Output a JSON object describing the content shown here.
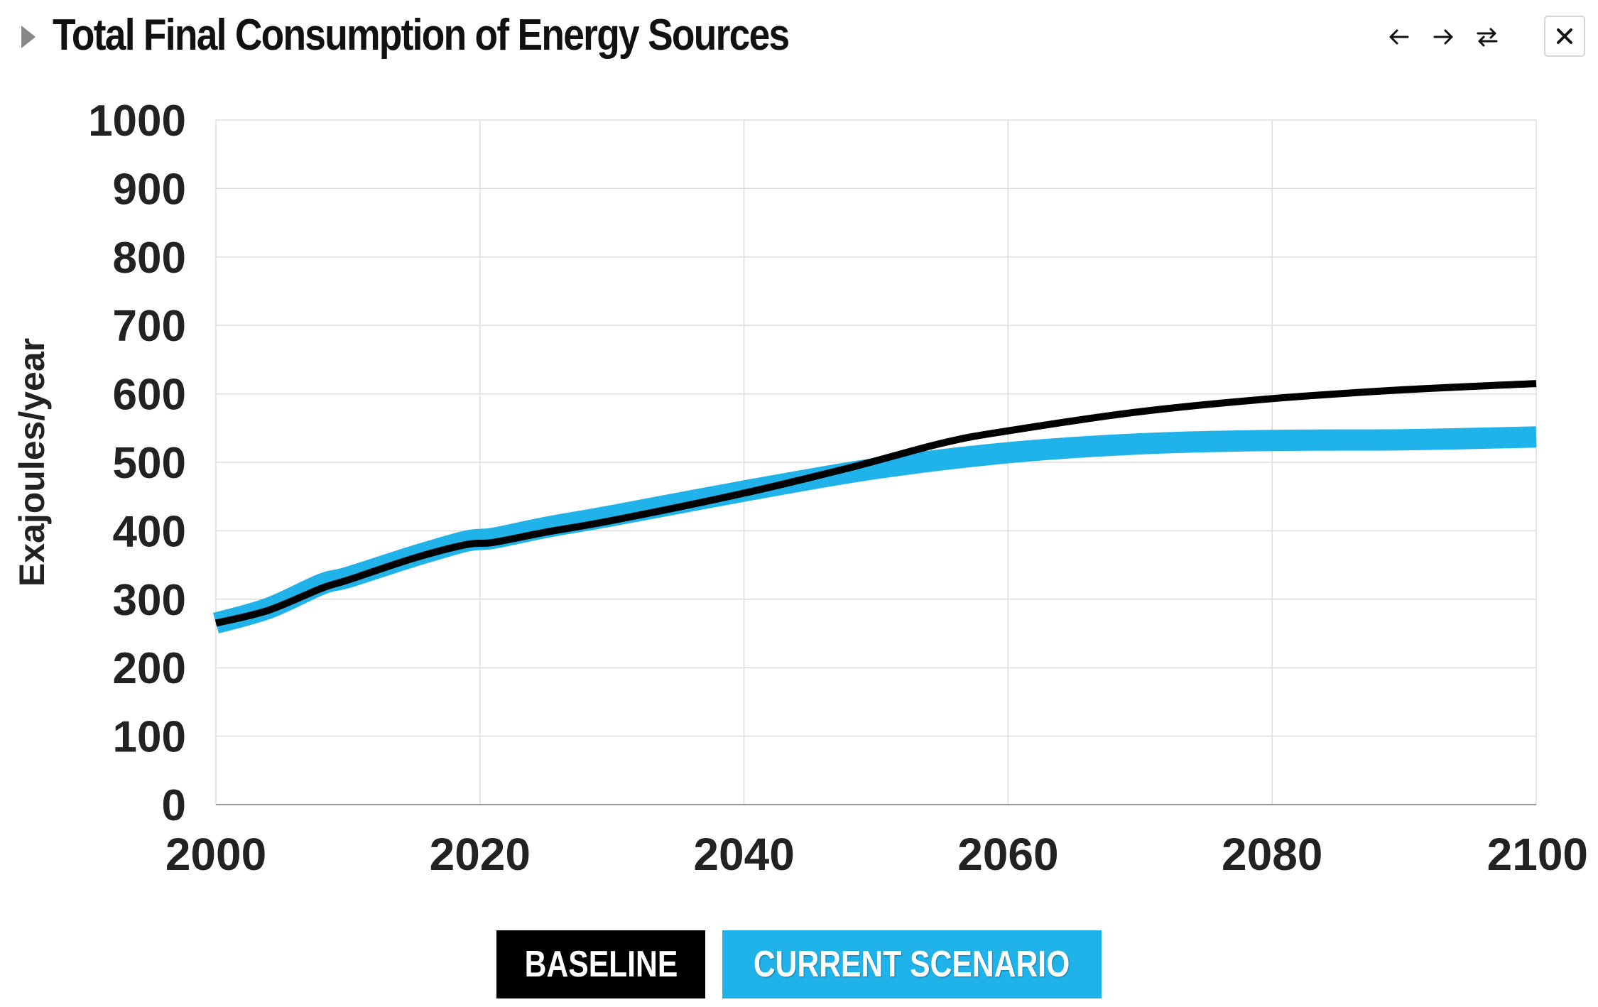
{
  "header": {
    "title": "Total Final Consumption of Energy Sources",
    "collapse_icon": "triangle-right-icon",
    "nav_icons": [
      "arrow-left-icon",
      "arrow-right-icon",
      "swap-icon"
    ],
    "close_icon": "close-icon"
  },
  "legend": {
    "baseline_label": "BASELINE",
    "current_label": "CURRENT SCENARIO"
  },
  "colors": {
    "baseline": "#000000",
    "current": "#1fb3ea",
    "grid": "#dddddd",
    "axis_text": "#222222"
  },
  "chart_data": {
    "type": "line",
    "title": "",
    "xlabel": "",
    "ylabel": "Exajoules/year",
    "xlim": [
      2000,
      2100
    ],
    "ylim": [
      0,
      1000
    ],
    "x_ticks": [
      "2000",
      "2020",
      "2040",
      "2060",
      "2080",
      "2100"
    ],
    "y_ticks": [
      "0",
      "100",
      "200",
      "300",
      "400",
      "500",
      "600",
      "700",
      "800",
      "900",
      "1000"
    ],
    "grid": true,
    "legend_position": "bottom-center",
    "series": [
      {
        "name": "CURRENT SCENARIO",
        "x": [
          2000,
          2004,
          2008,
          2010,
          2015,
          2019,
          2021,
          2025,
          2030,
          2040,
          2050,
          2060,
          2070,
          2080,
          2090,
          2100
        ],
        "y": [
          265,
          287,
          322,
          332,
          363,
          385,
          389,
          405,
          422,
          458,
          491,
          514,
          527,
          532,
          533,
          537
        ]
      },
      {
        "name": "BASELINE",
        "x": [
          2000,
          2004,
          2008,
          2010,
          2015,
          2019,
          2021,
          2025,
          2030,
          2040,
          2048,
          2055,
          2060,
          2070,
          2080,
          2090,
          2100
        ],
        "y": [
          265,
          284,
          316,
          328,
          360,
          380,
          383,
          398,
          415,
          455,
          492,
          528,
          546,
          574,
          593,
          606,
          615
        ]
      }
    ]
  }
}
